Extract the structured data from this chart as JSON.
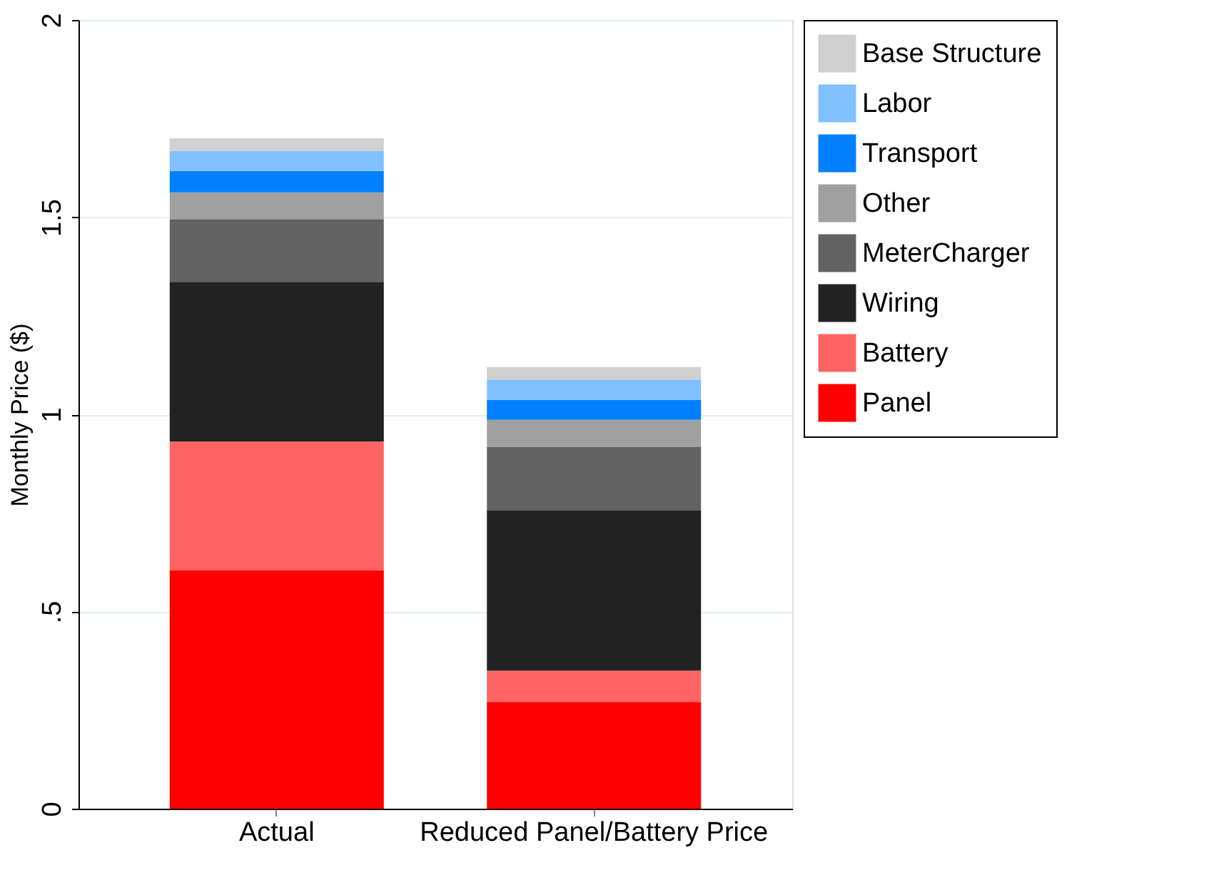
{
  "chart_data": {
    "type": "bar",
    "stacked": true,
    "ylabel": "Monthly Price ($)",
    "categories": [
      "Actual",
      "Reduced Panel/Battery Price"
    ],
    "series": [
      {
        "name": "Panel",
        "color": "#ff0000",
        "values": [
          0.604,
          0.271
        ]
      },
      {
        "name": "Battery",
        "color": "#ff6464",
        "values": [
          0.327,
          0.079
        ]
      },
      {
        "name": "Wiring",
        "color": "#222222",
        "values": [
          0.405,
          0.406
        ]
      },
      {
        "name": "MeterCharger",
        "color": "#636363",
        "values": [
          0.159,
          0.161
        ]
      },
      {
        "name": "Other",
        "color": "#a0a0a0",
        "values": [
          0.068,
          0.069
        ]
      },
      {
        "name": "Transport",
        "color": "#0080ff",
        "values": [
          0.054,
          0.05
        ]
      },
      {
        "name": "Labor",
        "color": "#80c0ff",
        "values": [
          0.051,
          0.052
        ]
      },
      {
        "name": "Base Structure",
        "color": "#d0d0d0",
        "values": [
          0.032,
          0.032
        ]
      }
    ],
    "ylim": [
      0,
      2
    ],
    "yticks": [
      0,
      {
        "value": 0.5,
        "label": ".5"
      },
      1,
      {
        "value": 1.5,
        "label": "1.5"
      },
      2
    ],
    "grid": "y",
    "legend": "right"
  }
}
